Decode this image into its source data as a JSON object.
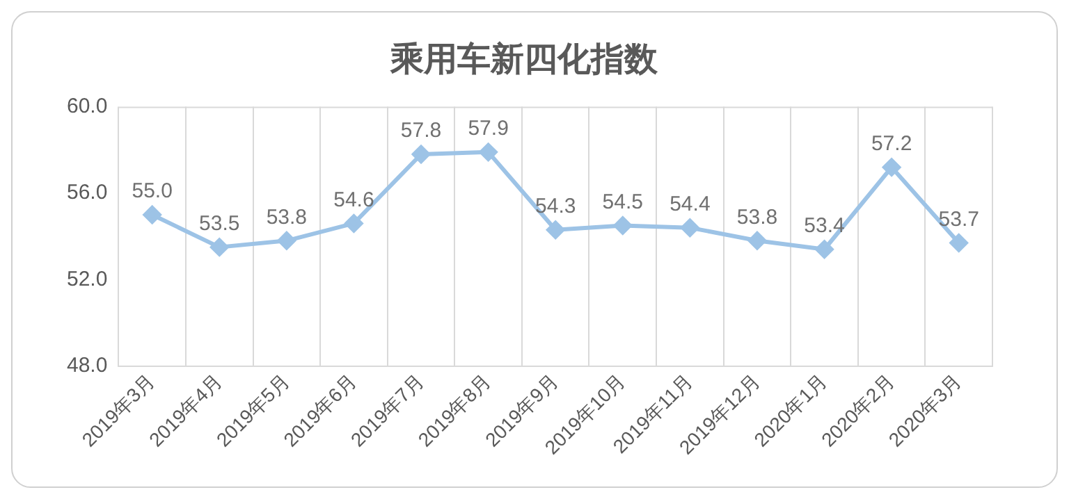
{
  "chart_data": {
    "type": "line",
    "title": "乘用车新四化指数",
    "categories": [
      "2019年3月",
      "2019年4月",
      "2019年5月",
      "2019年6月",
      "2019年7月",
      "2019年8月",
      "2019年9月",
      "2019年10月",
      "2019年11月",
      "2019年12月",
      "2020年1月",
      "2020年2月",
      "2020年3月"
    ],
    "values": [
      55.0,
      53.5,
      53.8,
      54.6,
      57.8,
      57.9,
      54.3,
      54.5,
      54.4,
      53.8,
      53.4,
      57.2,
      53.7
    ],
    "value_labels": [
      "55.0",
      "53.5",
      "53.8",
      "54.6",
      "57.8",
      "57.9",
      "54.3",
      "54.5",
      "54.4",
      "53.8",
      "53.4",
      "57.2",
      "53.7"
    ],
    "color": "#9dc3e6",
    "marker": "diamond",
    "line_style": "solid",
    "ylim": [
      48,
      60
    ],
    "yticks": [
      {
        "value": 48,
        "label": "48.0"
      },
      {
        "value": 52,
        "label": "52.0"
      },
      {
        "value": 56,
        "label": "56.0"
      },
      {
        "value": 60,
        "label": "60.0"
      }
    ],
    "grid": "x",
    "legend": false
  }
}
